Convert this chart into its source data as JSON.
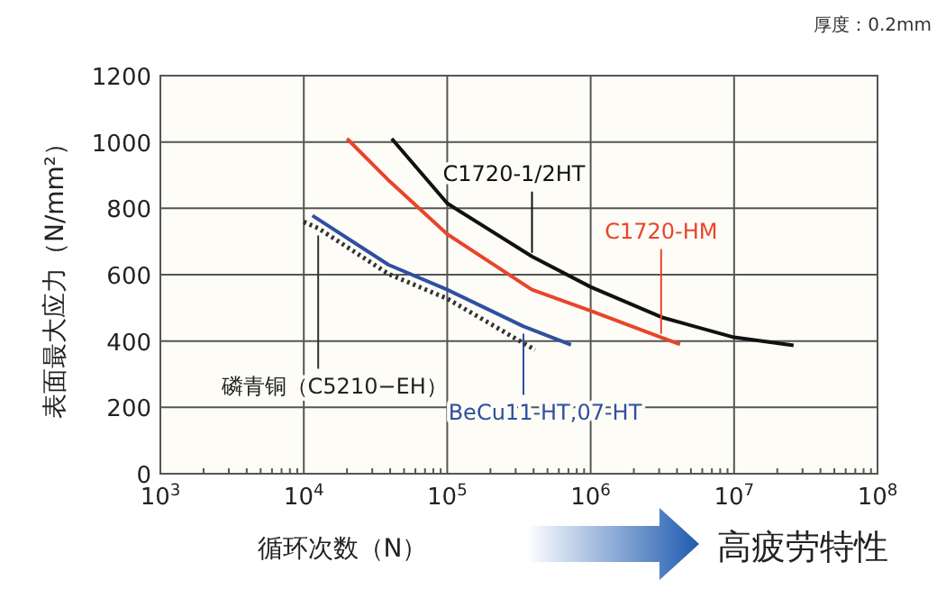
{
  "chart_data": {
    "type": "line",
    "xlabel": "循环次数（N）",
    "ylabel": "表面最大应力（N/mm²）",
    "log": "x",
    "grid": true,
    "xlim": [
      1000,
      100000000
    ],
    "ylim": [
      0,
      1200
    ],
    "xticks": [
      {
        "value": 1000,
        "label": "10$^{3}$"
      },
      {
        "value": 10000,
        "label": "10$^{4}$"
      },
      {
        "value": 100000,
        "label": "10$^{5}$"
      },
      {
        "value": 1000000,
        "label": "10$^{6}$"
      },
      {
        "value": 10000000,
        "label": "10$^{7}$"
      },
      {
        "value": 100000000,
        "label": "10$^{8}$"
      }
    ],
    "yticks": [
      0,
      200,
      400,
      600,
      800,
      1000,
      1200
    ],
    "annotations": [
      "厚度：0.2mm",
      "高疲劳特性"
    ],
    "series": [
      {
        "name": "C1720-1/2HT",
        "color": "#111111",
        "line_style": "solid",
        "x": [
          41000,
          100000,
          390000,
          1000000,
          3200000,
          10000000,
          26000000
        ],
        "values": [
          1010,
          815,
          655,
          563,
          470,
          411,
          387
        ]
      },
      {
        "name": "C1720-HM",
        "color": "#e8452a",
        "line_style": "solid",
        "x": [
          20000,
          40000,
          100000,
          390000,
          1000000,
          3100000,
          4200000
        ],
        "values": [
          1010,
          880,
          722,
          555,
          491,
          411,
          390
        ]
      },
      {
        "name": "BeCu11-HT,07-HT",
        "color": "#2f4fa0",
        "line_style": "solid",
        "x": [
          11500,
          39000,
          100000,
          340000,
          730000
        ],
        "values": [
          778,
          630,
          555,
          444,
          389
        ]
      },
      {
        "name": "磷青铜（C5210−EH）",
        "color": "#333333",
        "line_style": "dotted",
        "x": [
          10000,
          12600,
          39000,
          100000,
          410000
        ],
        "values": [
          759,
          740,
          602,
          528,
          373
        ]
      }
    ]
  }
}
